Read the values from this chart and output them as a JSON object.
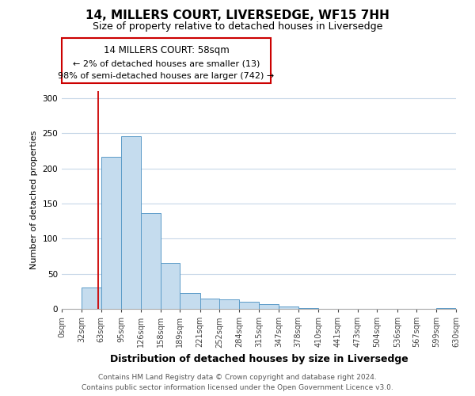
{
  "title": "14, MILLERS COURT, LIVERSEDGE, WF15 7HH",
  "subtitle": "Size of property relative to detached houses in Liversedge",
  "xlabel": "Distribution of detached houses by size in Liversedge",
  "ylabel": "Number of detached properties",
  "bar_edges": [
    0,
    32,
    63,
    95,
    126,
    158,
    189,
    221,
    252,
    284,
    315,
    347,
    378,
    410,
    441,
    473,
    504,
    536,
    567,
    599,
    630
  ],
  "bar_heights": [
    0,
    30,
    216,
    246,
    136,
    65,
    23,
    15,
    13,
    10,
    7,
    3,
    1,
    0,
    0,
    0,
    0,
    0,
    0,
    1
  ],
  "bar_color": "#c5dcee",
  "bar_edge_color": "#5b9bc8",
  "property_line_x": 58,
  "property_line_color": "#cc0000",
  "annotation_text_line1": "14 MILLERS COURT: 58sqm",
  "annotation_text_line2": "← 2% of detached houses are smaller (13)",
  "annotation_text_line3": "98% of semi-detached houses are larger (742) →",
  "annotation_box_edge_color": "#cc0000",
  "ylim": [
    0,
    310
  ],
  "yticks": [
    0,
    50,
    100,
    150,
    200,
    250,
    300
  ],
  "tick_labels": [
    "0sqm",
    "32sqm",
    "63sqm",
    "95sqm",
    "126sqm",
    "158sqm",
    "189sqm",
    "221sqm",
    "252sqm",
    "284sqm",
    "315sqm",
    "347sqm",
    "378sqm",
    "410sqm",
    "441sqm",
    "473sqm",
    "504sqm",
    "536sqm",
    "567sqm",
    "599sqm",
    "630sqm"
  ],
  "footnote1": "Contains HM Land Registry data © Crown copyright and database right 2024.",
  "footnote2": "Contains public sector information licensed under the Open Government Licence v3.0.",
  "background_color": "#ffffff",
  "grid_color": "#c8d8e8",
  "title_fontsize": 11,
  "subtitle_fontsize": 9,
  "xlabel_fontsize": 9,
  "ylabel_fontsize": 8,
  "tick_fontsize": 7,
  "footnote_fontsize": 6.5
}
